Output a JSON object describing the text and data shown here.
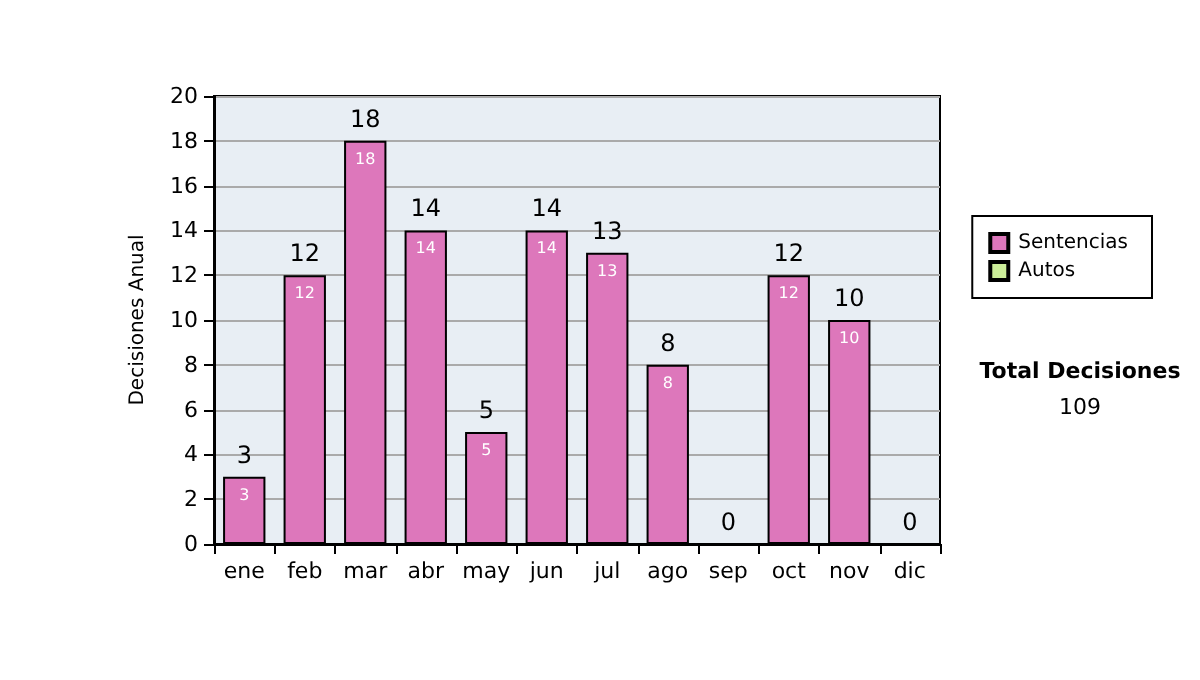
{
  "chart_data": {
    "type": "bar",
    "stacked": true,
    "ylabel": "Decisiones Anual",
    "categories": [
      "ene",
      "feb",
      "mar",
      "abr",
      "may",
      "jun",
      "jul",
      "ago",
      "sep",
      "oct",
      "nov",
      "dic"
    ],
    "series": [
      {
        "name": "Sentencias",
        "color": "#dd77bb",
        "values": [
          3,
          12,
          18,
          14,
          5,
          14,
          13,
          8,
          0,
          12,
          10,
          0
        ],
        "value_labels": [
          "3",
          "12",
          "18",
          "14",
          "5",
          "14",
          "13",
          "8",
          null,
          "12",
          "10",
          null
        ]
      },
      {
        "name": "Autos",
        "color": "#ccee99",
        "values": [
          0,
          0,
          0,
          0,
          0,
          0,
          0,
          0,
          0,
          0,
          0,
          0
        ]
      }
    ],
    "totals": [
      "3",
      "12",
      "18",
      "14",
      "5",
      "14",
      "13",
      "8",
      "0",
      "12",
      "10",
      "0"
    ],
    "ylim": [
      0,
      20
    ],
    "yticks": [
      0,
      2,
      4,
      6,
      8,
      10,
      12,
      14,
      16,
      18,
      20
    ],
    "grid": "y",
    "legend": "right",
    "annotations": [
      "Total Decisiones",
      "109"
    ]
  }
}
